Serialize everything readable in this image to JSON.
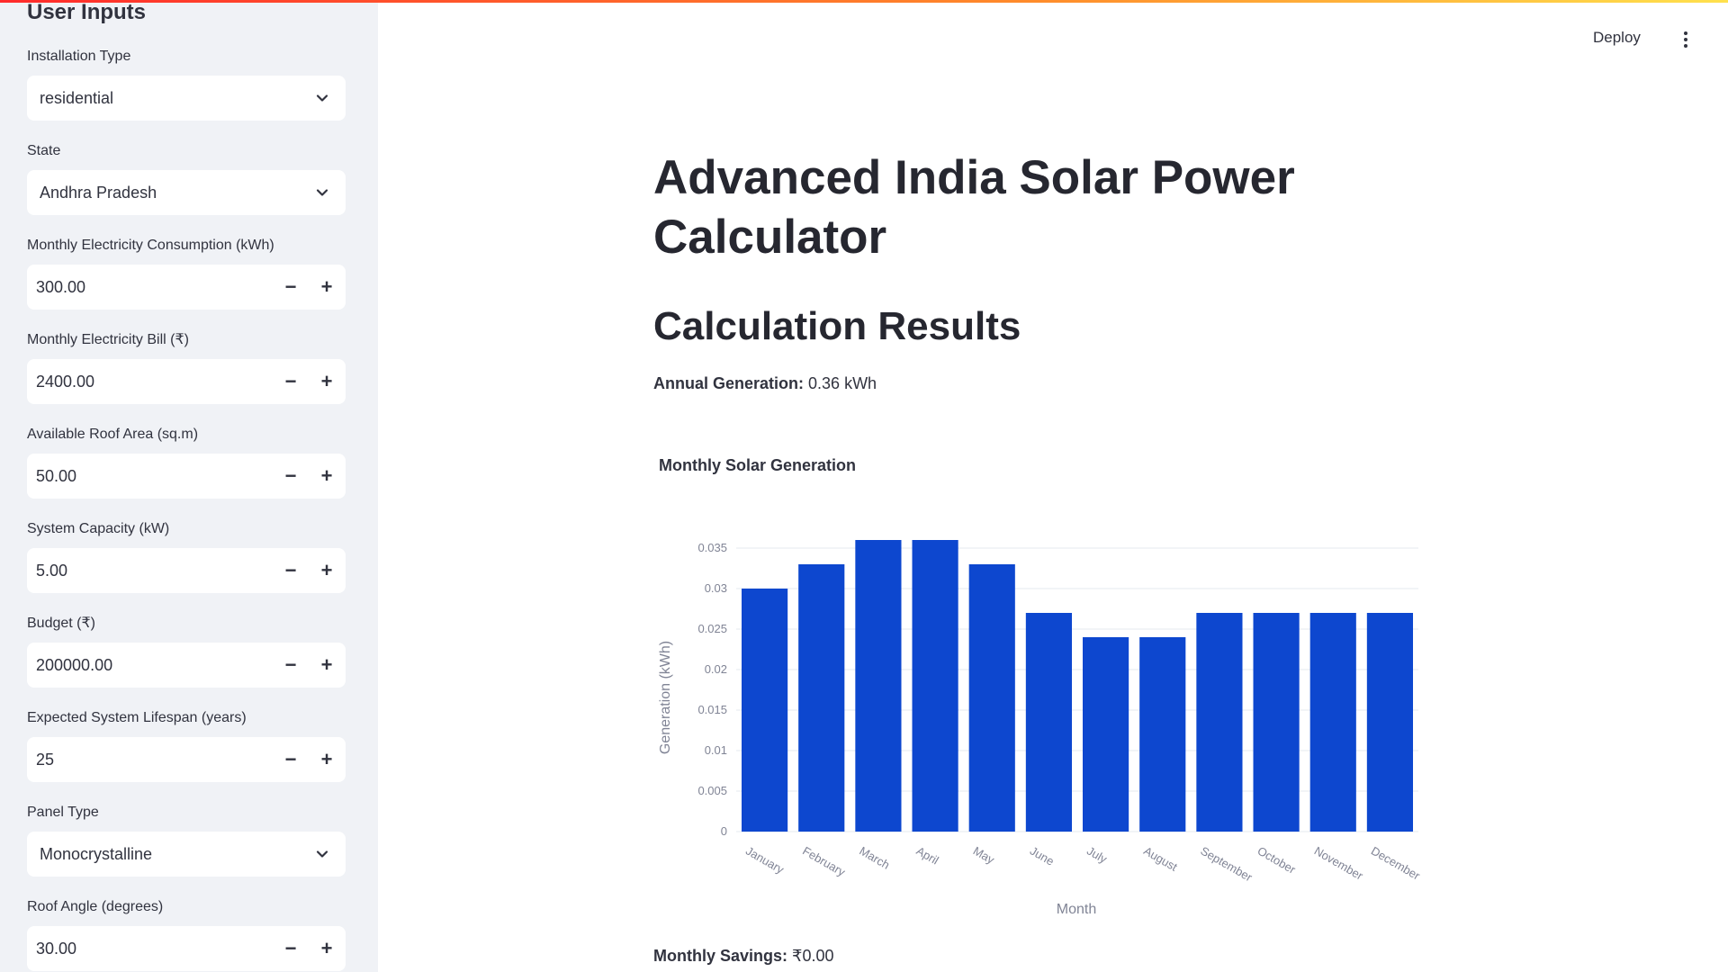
{
  "sidebar": {
    "title": "User Inputs",
    "fields": [
      {
        "label": "Installation Type",
        "value": "residential",
        "type": "select"
      },
      {
        "label": "State",
        "value": "Andhra Pradesh",
        "type": "select"
      },
      {
        "label": "Monthly Electricity Consumption (kWh)",
        "value": "300.00",
        "type": "number"
      },
      {
        "label": "Monthly Electricity Bill (₹)",
        "value": "2400.00",
        "type": "number"
      },
      {
        "label": "Available Roof Area (sq.m)",
        "value": "50.00",
        "type": "number"
      },
      {
        "label": "System Capacity (kW)",
        "value": "5.00",
        "type": "number"
      },
      {
        "label": "Budget (₹)",
        "value": "200000.00",
        "type": "number"
      },
      {
        "label": "Expected System Lifespan (years)",
        "value": "25",
        "type": "number"
      },
      {
        "label": "Panel Type",
        "value": "Monocrystalline",
        "type": "select"
      },
      {
        "label": "Roof Angle (degrees)",
        "value": "30.00",
        "type": "number"
      }
    ],
    "stepper": {
      "minus": "−",
      "plus": "+"
    }
  },
  "header": {
    "deploy_label": "Deploy",
    "menu_icon": "kebab-menu-icon"
  },
  "main": {
    "title": "Advanced India Solar Power Calculator",
    "subtitle": "Calculation Results",
    "annual_label": "Annual Generation:",
    "annual_value": "0.36 kWh",
    "savings_label": "Monthly Savings:",
    "savings_value": "₹0.00"
  },
  "colors": {
    "bar": "#0d47cf",
    "accent": "#ff2b2b",
    "sidebar_bg": "#f0f2f6"
  },
  "chart_data": {
    "type": "bar",
    "title": "Monthly Solar Generation",
    "xlabel": "Month",
    "ylabel": "Generation (kWh)",
    "categories": [
      "January",
      "February",
      "March",
      "April",
      "May",
      "June",
      "July",
      "August",
      "September",
      "October",
      "November",
      "December"
    ],
    "values": [
      0.03,
      0.033,
      0.036,
      0.036,
      0.033,
      0.027,
      0.024,
      0.024,
      0.027,
      0.027,
      0.027,
      0.027
    ],
    "yticks": [
      "0",
      "0.005",
      "0.01",
      "0.015",
      "0.02",
      "0.025",
      "0.03",
      "0.035"
    ],
    "ylim": [
      0,
      0.036
    ],
    "grid": true
  }
}
